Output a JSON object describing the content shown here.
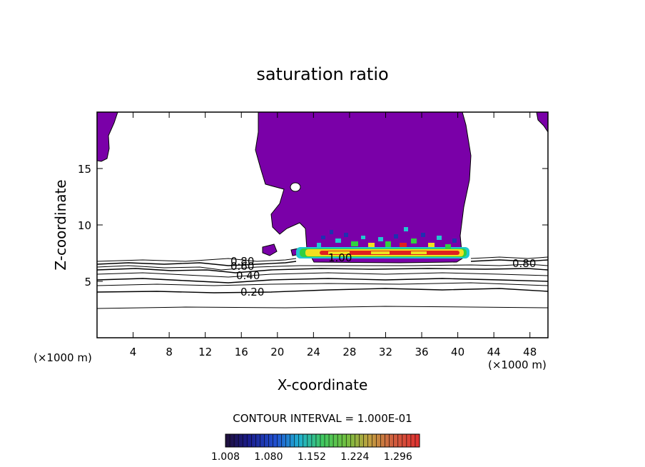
{
  "chart_data": {
    "type": "contour",
    "title": "saturation ratio",
    "xlabel": "X-coordinate",
    "ylabel": "Z-coordinate",
    "x_unit": "(×1000 m)",
    "x_ticks": [
      4,
      8,
      12,
      16,
      20,
      24,
      28,
      32,
      36,
      40,
      44,
      48
    ],
    "y_ticks": [
      5,
      10,
      15
    ],
    "xlim": [
      0,
      50
    ],
    "ylim": [
      0,
      20
    ],
    "contour_labels": [
      {
        "text": "0.20",
        "x": 16.4,
        "z": 4.1
      },
      {
        "text": "0.40",
        "x": 16.4,
        "z": 5.4
      },
      {
        "text": "0.60",
        "x": 16.0,
        "z": 6.3
      },
      {
        "text": "0.80",
        "x": 16.0,
        "z": 6.7
      },
      {
        "text": "1.00",
        "x": 26.4,
        "z": 7.1
      },
      {
        "text": "0.80",
        "x": 46.4,
        "z": 6.5
      }
    ],
    "contour_interval_text": "CONTOUR INTERVAL = 1.000E-01",
    "colorbar": {
      "tick_labels": [
        "1.008",
        "1.080",
        "1.152",
        "1.224",
        "1.296"
      ],
      "min": 1.008,
      "max": 1.332
    },
    "colors": {
      "saturated_fill": "#7a00a8",
      "core_red": "#e0201e",
      "core_yellow": "#f0e020",
      "core_green": "#30d040",
      "core_cyan": "#20c8d0",
      "core_blue": "#2030b0"
    }
  }
}
